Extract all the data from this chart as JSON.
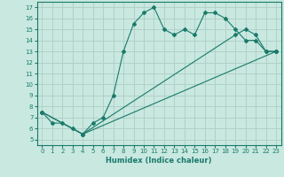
{
  "xlabel": "Humidex (Indice chaleur)",
  "bg_color": "#c8e8e0",
  "grid_color": "#b0d0c8",
  "line_color": "#1a7a6a",
  "xlim": [
    -0.5,
    23.5
  ],
  "ylim": [
    4.5,
    17.5
  ],
  "xticks": [
    0,
    1,
    2,
    3,
    4,
    5,
    6,
    7,
    8,
    9,
    10,
    11,
    12,
    13,
    14,
    15,
    16,
    17,
    18,
    19,
    20,
    21,
    22,
    23
  ],
  "yticks": [
    5,
    6,
    7,
    8,
    9,
    10,
    11,
    12,
    13,
    14,
    15,
    16,
    17
  ],
  "lines": [
    {
      "x": [
        0,
        1,
        2,
        3,
        4,
        5,
        6,
        7,
        8,
        9,
        10,
        11,
        12,
        13,
        14,
        15,
        16,
        17,
        18,
        19,
        20,
        21,
        22,
        23
      ],
      "y": [
        7.5,
        6.5,
        6.5,
        6.0,
        5.5,
        6.5,
        7.0,
        9.0,
        13.0,
        15.5,
        16.5,
        17.0,
        15.0,
        14.5,
        15.0,
        14.5,
        16.5,
        16.5,
        16.0,
        15.0,
        14.0,
        14.0,
        13.0,
        13.0
      ]
    },
    {
      "x": [
        0,
        4,
        23
      ],
      "y": [
        7.5,
        5.5,
        13.0
      ]
    },
    {
      "x": [
        0,
        4,
        19,
        20,
        21,
        22,
        23
      ],
      "y": [
        7.5,
        5.5,
        14.5,
        15.0,
        14.5,
        13.0,
        13.0
      ]
    }
  ]
}
